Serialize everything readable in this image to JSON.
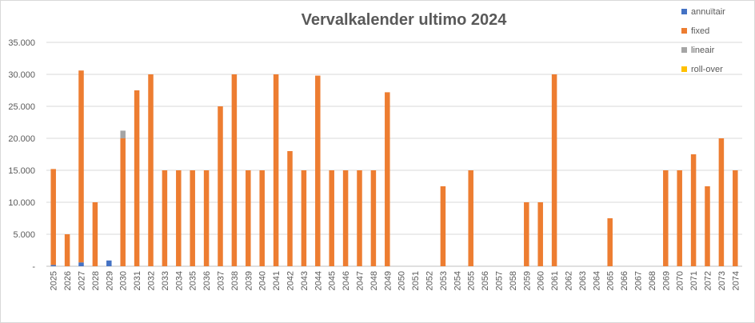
{
  "chart_data": {
    "type": "bar",
    "stacked": true,
    "title": "Vervalkalender ultimo 2024",
    "xlabel": "",
    "ylabel": "",
    "ylim": [
      0,
      35000
    ],
    "y_ticks": [
      "-",
      "5.000",
      "10.000",
      "15.000",
      "20.000",
      "25.000",
      "30.000",
      "35.000"
    ],
    "grid": true,
    "legend_position": "right",
    "categories": [
      "2025",
      "2026",
      "2027",
      "2028",
      "2029",
      "2030",
      "2031",
      "2032",
      "2033",
      "2034",
      "2035",
      "2036",
      "2037",
      "2038",
      "2039",
      "2040",
      "2041",
      "2042",
      "2043",
      "2044",
      "2045",
      "2046",
      "2047",
      "2048",
      "2049",
      "2050",
      "2051",
      "2052",
      "2053",
      "2054",
      "2055",
      "2056",
      "2057",
      "2058",
      "2059",
      "2060",
      "2061",
      "2062",
      "2063",
      "2064",
      "2065",
      "2066",
      "2067",
      "2068",
      "2069",
      "2070",
      "2071",
      "2072",
      "2073",
      "2074"
    ],
    "series": [
      {
        "name": "annuïtair",
        "color": "#4472c4",
        "values": [
          200,
          0,
          600,
          0,
          900,
          0,
          0,
          0,
          0,
          0,
          0,
          0,
          0,
          0,
          0,
          0,
          0,
          0,
          0,
          0,
          0,
          0,
          0,
          0,
          0,
          0,
          0,
          0,
          0,
          0,
          0,
          0,
          0,
          0,
          0,
          0,
          0,
          0,
          0,
          0,
          0,
          0,
          0,
          0,
          0,
          0,
          0,
          0,
          0,
          0
        ]
      },
      {
        "name": "fixed",
        "color": "#ed7d31",
        "values": [
          15000,
          5000,
          30000,
          10000,
          0,
          20000,
          27500,
          30000,
          15000,
          15000,
          15000,
          15000,
          25000,
          30000,
          15000,
          15000,
          30000,
          18000,
          15000,
          29800,
          15000,
          15000,
          15000,
          15000,
          27200,
          0,
          0,
          0,
          12500,
          0,
          15000,
          0,
          0,
          0,
          10000,
          10000,
          30000,
          0,
          0,
          0,
          7500,
          0,
          0,
          0,
          15000,
          15000,
          17500,
          12500,
          20000,
          15000
        ]
      },
      {
        "name": "lineair",
        "color": "#a5a5a5",
        "values": [
          0,
          0,
          0,
          0,
          0,
          1200,
          0,
          0,
          0,
          0,
          0,
          0,
          0,
          0,
          0,
          0,
          0,
          0,
          0,
          0,
          0,
          0,
          0,
          0,
          0,
          0,
          0,
          0,
          0,
          0,
          0,
          0,
          0,
          0,
          0,
          0,
          0,
          0,
          0,
          0,
          0,
          0,
          0,
          0,
          0,
          0,
          0,
          0,
          0,
          0
        ]
      },
      {
        "name": "roll-over",
        "color": "#ffc000",
        "values": [
          0,
          0,
          0,
          0,
          0,
          0,
          0,
          0,
          0,
          0,
          0,
          0,
          0,
          0,
          0,
          0,
          0,
          0,
          0,
          0,
          0,
          0,
          0,
          0,
          0,
          0,
          0,
          0,
          0,
          0,
          0,
          0,
          0,
          0,
          0,
          0,
          0,
          0,
          0,
          0,
          0,
          0,
          0,
          0,
          0,
          0,
          0,
          0,
          0,
          0
        ]
      }
    ]
  }
}
